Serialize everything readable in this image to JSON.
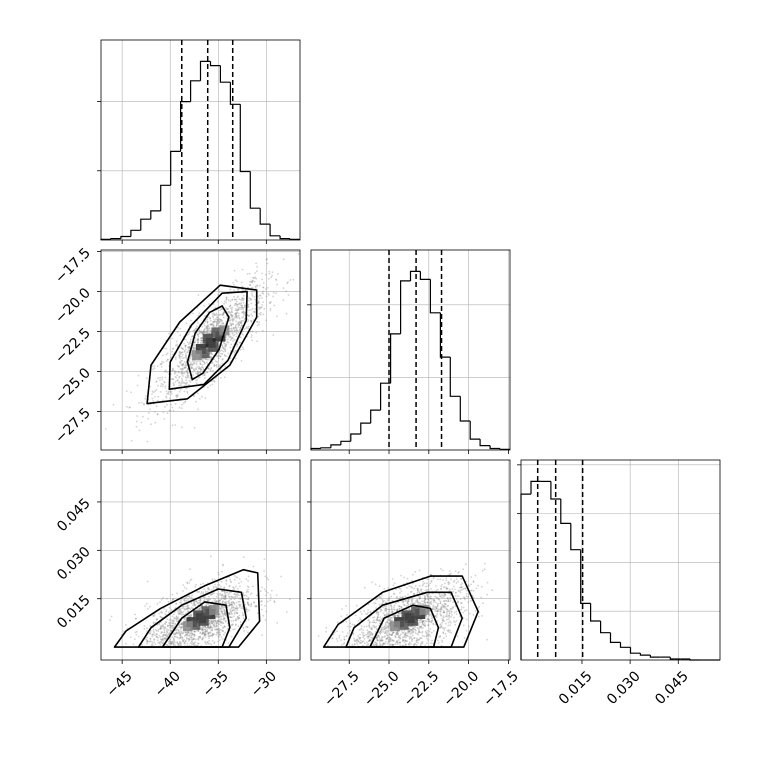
{
  "chart_data": {
    "type": "corner",
    "colors": {
      "line": "#000000",
      "grid": "#b0b0b0",
      "sample": "#808080",
      "background": "#ffffff"
    },
    "grid": true,
    "parameters": [
      {
        "ticks": [
          -45,
          -40,
          -35,
          -30
        ],
        "tick_labels": [
          "−45",
          "−40",
          "−35",
          "−30"
        ],
        "range": [
          -47.2,
          -26.5
        ],
        "quantiles": [
          -38.8,
          -36.1,
          -33.5
        ]
      },
      {
        "ticks": [
          -27.5,
          -25,
          -22.5,
          -20,
          -17.5
        ],
        "tick_labels": [
          "−27.5",
          "−25.0",
          "−22.5",
          "−20.0",
          "−17.5"
        ],
        "range": [
          -29.9,
          -17.4
        ],
        "quantiles": [
          -25.0,
          -23.3,
          -21.7
        ]
      },
      {
        "ticks": [
          0.015,
          0.03,
          0.045
        ],
        "tick_labels": [
          "0.015",
          "0.030",
          "0.045"
        ],
        "range": [
          -0.004,
          0.058
        ],
        "quantiles": [
          0.0012,
          0.0068,
          0.0152
        ]
      }
    ],
    "histograms": [
      {
        "param": 0,
        "edges": [
          -47.2,
          -46.165,
          -45.13,
          -44.095,
          -43.06,
          -42.025,
          -40.99,
          -39.955,
          -38.92,
          -37.885,
          -36.85,
          -35.815,
          -34.78,
          -33.745,
          -32.71,
          -31.675,
          -30.64,
          -29.605,
          -28.57,
          -27.535,
          -26.5
        ],
        "counts": [
          1,
          2,
          5,
          14,
          30,
          42,
          79,
          128,
          200,
          230,
          258,
          252,
          228,
          196,
          99,
          46,
          23,
          6,
          2,
          1
        ]
      },
      {
        "param": 1,
        "edges": [
          -29.9,
          -29.275,
          -28.65,
          -28.025,
          -27.4,
          -26.775,
          -26.15,
          -25.525,
          -24.9,
          -24.275,
          -23.65,
          -23.025,
          -22.4,
          -21.775,
          -21.15,
          -20.525,
          -19.9,
          -19.275,
          -18.65,
          -18.025,
          -17.4
        ],
        "counts": [
          2,
          3,
          7,
          12,
          22,
          37,
          55,
          92,
          160,
          233,
          246,
          235,
          189,
          128,
          74,
          40,
          15,
          6,
          2,
          1
        ]
      },
      {
        "param": 2,
        "edges": [
          -0.004,
          -0.0009,
          0.0022,
          0.0053,
          0.0084,
          0.0115,
          0.0146,
          0.0177,
          0.0208,
          0.0239,
          0.027,
          0.0301,
          0.0332,
          0.0363,
          0.0394,
          0.0425,
          0.0456,
          0.0487,
          0.0518,
          0.0549,
          0.058
        ],
        "counts": [
          170,
          183,
          183,
          165,
          140,
          113,
          58,
          40,
          28,
          18,
          13,
          7,
          5,
          3,
          3,
          1,
          1,
          0,
          0,
          0
        ]
      }
    ],
    "pairs": [
      {
        "x_param": 0,
        "y_param": 1,
        "mean": [
          -35.8,
          -23.2
        ],
        "sd": [
          2.9,
          1.85
        ],
        "rho": 0.8,
        "contours": [
          {
            "level": 0.5,
            "points": [
              [
                -37.7,
                -25.5
              ],
              [
                -36.6,
                -25.1
              ],
              [
                -34.9,
                -23.6
              ],
              [
                -33.9,
                -21.6
              ],
              [
                -34.6,
                -20.9
              ],
              [
                -35.9,
                -21.3
              ],
              [
                -37.4,
                -22.6
              ],
              [
                -38.2,
                -24.4
              ]
            ]
          },
          {
            "level": 0.9,
            "points": [
              [
                -40.1,
                -26.1
              ],
              [
                -36.5,
                -25.8
              ],
              [
                -34.0,
                -24.3
              ],
              [
                -32.1,
                -21.8
              ],
              [
                -32.0,
                -20.0
              ],
              [
                -34.6,
                -20.1
              ],
              [
                -37.8,
                -22.1
              ],
              [
                -40.0,
                -24.4
              ]
            ]
          },
          {
            "level": 0.99,
            "points": [
              [
                -42.4,
                -27.0
              ],
              [
                -38.2,
                -26.7
              ],
              [
                -33.8,
                -24.6
              ],
              [
                -31.0,
                -21.6
              ],
              [
                -31.0,
                -19.9
              ],
              [
                -34.8,
                -19.6
              ],
              [
                -39.0,
                -21.9
              ],
              [
                -42.0,
                -24.6
              ]
            ]
          }
        ]
      },
      {
        "x_param": 0,
        "y_param": 2,
        "mean": [
          -36.8,
          0.009
        ],
        "sd": [
          2.8,
          0.006
        ],
        "rho": 0.55,
        "contours": [
          {
            "level": 0.5,
            "points": [
              [
                -40.8,
                0.0
              ],
              [
                -34.6,
                0.0
              ],
              [
                -33.8,
                0.006
              ],
              [
                -34.2,
                0.013
              ],
              [
                -36.4,
                0.014
              ],
              [
                -38.8,
                0.009
              ]
            ]
          },
          {
            "level": 0.9,
            "points": [
              [
                -43.3,
                0.0
              ],
              [
                -33.9,
                0.0
              ],
              [
                -32.1,
                0.009
              ],
              [
                -32.6,
                0.017
              ],
              [
                -35.0,
                0.018
              ],
              [
                -38.8,
                0.013
              ],
              [
                -42.0,
                0.006
              ]
            ]
          },
          {
            "level": 0.99,
            "points": [
              [
                -45.8,
                0.0
              ],
              [
                -32.9,
                0.0
              ],
              [
                -30.7,
                0.008
              ],
              [
                -30.9,
                0.023
              ],
              [
                -32.4,
                0.024
              ],
              [
                -36.4,
                0.019
              ],
              [
                -41.0,
                0.012
              ],
              [
                -44.6,
                0.005
              ]
            ]
          }
        ]
      },
      {
        "x_param": 1,
        "y_param": 2,
        "mean": [
          -23.7,
          0.009
        ],
        "sd": [
          1.9,
          0.006
        ],
        "rho": 0.55,
        "contours": [
          {
            "level": 0.5,
            "points": [
              [
                -26.2,
                0.0
              ],
              [
                -22.2,
                0.0
              ],
              [
                -21.9,
                0.006
              ],
              [
                -22.4,
                0.012
              ],
              [
                -23.5,
                0.013
              ],
              [
                -25.3,
                0.009
              ]
            ]
          },
          {
            "level": 0.9,
            "points": [
              [
                -27.7,
                0.0
              ],
              [
                -21.1,
                0.0
              ],
              [
                -20.4,
                0.009
              ],
              [
                -21.1,
                0.017
              ],
              [
                -22.6,
                0.017
              ],
              [
                -25.4,
                0.013
              ],
              [
                -27.2,
                0.006
              ]
            ]
          },
          {
            "level": 0.99,
            "points": [
              [
                -29.1,
                0.0
              ],
              [
                -20.3,
                0.0
              ],
              [
                -19.4,
                0.011
              ],
              [
                -20.4,
                0.022
              ],
              [
                -22.4,
                0.022
              ],
              [
                -25.4,
                0.017
              ],
              [
                -28.2,
                0.007
              ]
            ]
          }
        ]
      }
    ]
  }
}
